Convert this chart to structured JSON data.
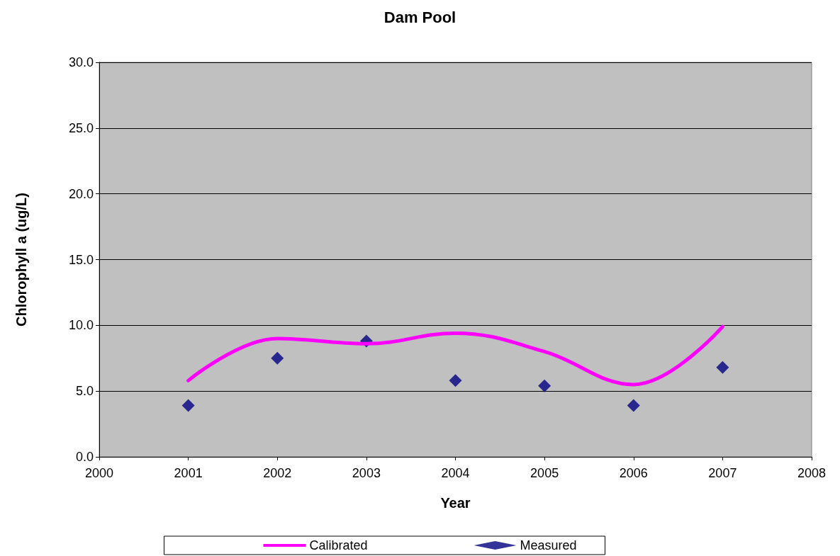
{
  "chart_data": {
    "type": "line",
    "title": "Dam Pool",
    "xlabel": "Year",
    "ylabel": "Chlorophyll a (ug/L)",
    "x": [
      2001,
      2002,
      2003,
      2004,
      2005,
      2006,
      2007
    ],
    "series": [
      {
        "name": "Calibrated",
        "color": "#ff00ff",
        "marker": "none",
        "values": [
          5.8,
          9.0,
          8.6,
          9.4,
          8.0,
          5.5,
          9.9
        ]
      },
      {
        "name": "Measured",
        "type": "scatter",
        "color": "#000080",
        "marker": "diamond",
        "values": [
          3.9,
          7.5,
          8.8,
          5.8,
          5.4,
          3.9,
          6.8
        ]
      }
    ],
    "xlim": [
      2000,
      2008
    ],
    "xticks": [
      2000,
      2001,
      2002,
      2003,
      2004,
      2005,
      2006,
      2007,
      2008
    ],
    "ylim": [
      0,
      30
    ],
    "yticks": [
      {
        "value": 0,
        "label": "0.0"
      },
      {
        "value": 5,
        "label": "5.0"
      },
      {
        "value": 10,
        "label": "10.0"
      },
      {
        "value": 15,
        "label": "15.0"
      },
      {
        "value": 20,
        "label": "20.0"
      },
      {
        "value": 25,
        "label": "25.0"
      },
      {
        "value": 30,
        "label": "30.0"
      }
    ],
    "grid": "y",
    "legend": "bottom"
  }
}
